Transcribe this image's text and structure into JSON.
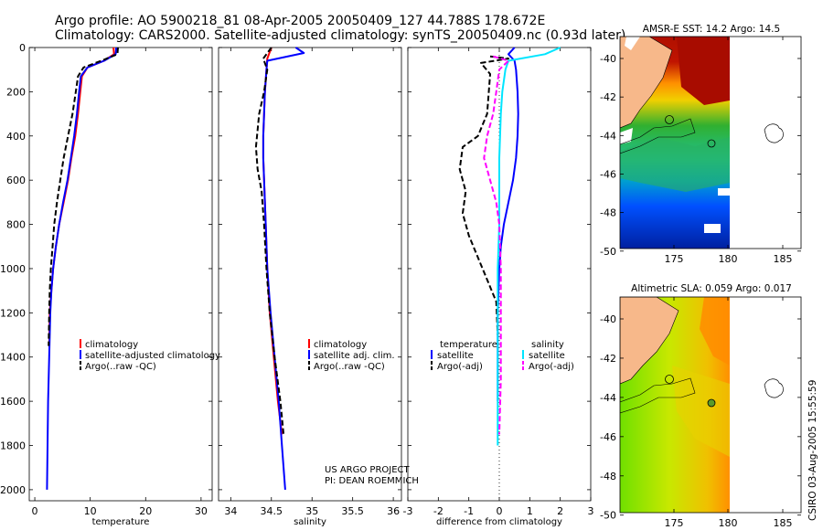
{
  "header": {
    "line1": "Argo profile: AO 5900218_81 08-Apr-2005 20050409_127 44.788S 178.672E",
    "line2": "Climatology: CARS2000. Satellite-adjusted climatology: synTS_20050409.nc (0.93d later)"
  },
  "colors": {
    "climatology": "#ff0000",
    "satellite": "#0000ff",
    "argo": "#000000",
    "salinity_satellite": "#00e5ff",
    "salinity_argo": "#ff00ff"
  },
  "chart_data": [
    {
      "type": "line",
      "xlabel": "temperature",
      "xlim": [
        -1,
        32
      ],
      "ylim": [
        2050,
        0
      ],
      "xticks": [
        0,
        10,
        20,
        30
      ],
      "yticks": [
        0,
        200,
        400,
        600,
        800,
        1000,
        1200,
        1400,
        1600,
        1800,
        2000
      ],
      "legend": [
        "climatology",
        "satellite-adjusted climatology",
        "Argo(..raw -QC)"
      ],
      "series": [
        {
          "name": "climatology",
          "style": "solid",
          "color": "#ff0000",
          "x": [
            14.2,
            14.3,
            12.5,
            9.5,
            8.5,
            8.2,
            7.8,
            7.3,
            6.6,
            6.0,
            5.2,
            4.4,
            3.8,
            3.3,
            3.0,
            2.7,
            2.6
          ],
          "y": [
            0,
            30,
            60,
            90,
            130,
            200,
            300,
            400,
            500,
            600,
            700,
            800,
            900,
            1000,
            1100,
            1200,
            1350
          ]
        },
        {
          "name": "satellite-adjusted climatology",
          "style": "solid",
          "color": "#0000ff",
          "x": [
            14.7,
            14.6,
            12.5,
            9.5,
            8.3,
            8.0,
            7.6,
            7.1,
            6.5,
            5.9,
            5.1,
            4.4,
            3.8,
            3.3,
            3.0,
            2.8,
            2.6,
            2.4,
            2.3,
            2.2
          ],
          "y": [
            0,
            30,
            60,
            90,
            130,
            200,
            300,
            400,
            500,
            600,
            700,
            800,
            900,
            1000,
            1100,
            1200,
            1400,
            1600,
            1800,
            2000
          ]
        },
        {
          "name": "Argo(..raw -QC)",
          "style": "dashed",
          "color": "#000000",
          "x": [
            15.0,
            14.9,
            12.0,
            8.8,
            7.8,
            7.4,
            6.8,
            6.0,
            5.2,
            4.6,
            4.0,
            3.5,
            3.2,
            2.9,
            2.7,
            2.6,
            2.5
          ],
          "y": [
            0,
            30,
            60,
            90,
            130,
            200,
            300,
            400,
            500,
            600,
            700,
            800,
            900,
            1000,
            1100,
            1200,
            1350
          ]
        }
      ]
    },
    {
      "type": "line",
      "xlabel": "salinity",
      "xlim": [
        33.85,
        36.1
      ],
      "ylim": [
        2050,
        0
      ],
      "xticks": [
        34,
        34.5,
        35,
        35.5,
        36
      ],
      "legend": [
        "climatology",
        "satellite adj. clim.",
        "Argo(..raw -QC)"
      ],
      "annotation": [
        "US ARGO PROJECT",
        "PI: DEAN ROEMMICH"
      ],
      "series": [
        {
          "name": "climatology",
          "style": "solid",
          "color": "#ff0000",
          "x": [
            34.5,
            34.45,
            34.44,
            34.42,
            34.41,
            34.4,
            34.4,
            34.41,
            34.43,
            34.45,
            34.48,
            34.53,
            34.58,
            34.63
          ],
          "y": [
            0,
            50,
            100,
            200,
            300,
            400,
            500,
            600,
            800,
            1000,
            1200,
            1400,
            1600,
            1750
          ]
        },
        {
          "name": "satellite adj. clim.",
          "style": "solid",
          "color": "#0000ff",
          "x": [
            34.8,
            34.9,
            34.45,
            34.44,
            34.42,
            34.41,
            34.4,
            34.4,
            34.41,
            34.43,
            34.45,
            34.49,
            34.54,
            34.59,
            34.63,
            34.67
          ],
          "y": [
            0,
            25,
            60,
            100,
            200,
            300,
            400,
            500,
            600,
            800,
            1000,
            1200,
            1400,
            1600,
            1800,
            2000
          ]
        },
        {
          "name": "Argo(..raw -QC)",
          "style": "dashed",
          "color": "#000000",
          "x": [
            34.5,
            34.4,
            34.45,
            34.41,
            34.35,
            34.31,
            34.33,
            34.38,
            34.41,
            34.44,
            34.48,
            34.54,
            34.61,
            34.65
          ],
          "y": [
            0,
            50,
            100,
            200,
            300,
            450,
            550,
            650,
            800,
            1000,
            1200,
            1400,
            1600,
            1750
          ]
        }
      ]
    },
    {
      "type": "line",
      "xlabel": "difference from climatology",
      "xlim": [
        -3,
        3
      ],
      "ylim": [
        2050,
        0
      ],
      "xticks": [
        -3,
        -2,
        -1,
        0,
        1,
        2,
        3
      ],
      "legend": [
        "temperature",
        "satellite",
        "Argo(-adj)",
        "salinity",
        "satellite",
        "Argo(-adj)"
      ],
      "series": [
        {
          "name": "temperature satellite",
          "style": "solid",
          "color": "#0000ff",
          "x": [
            0.5,
            0.3,
            0.5,
            0.55,
            0.6,
            0.62,
            0.6,
            0.55,
            0.45,
            0.3,
            0.15,
            0.05,
            0.0,
            -0.05,
            -0.05,
            -0.05
          ],
          "y": [
            0,
            30,
            60,
            100,
            200,
            300,
            400,
            500,
            600,
            700,
            800,
            900,
            1000,
            1200,
            1400,
            1600
          ]
        },
        {
          "name": "temperature Argo(-adj)",
          "style": "dashed",
          "color": "#000000",
          "x": [
            -0.3,
            0.3,
            -0.6,
            -0.3,
            -0.4,
            -0.7,
            -1.2,
            -1.3,
            -1.1,
            -1.2,
            -1.0,
            -0.7,
            -0.4,
            -0.1,
            -0.05
          ],
          "y": [
            40,
            50,
            70,
            120,
            300,
            400,
            450,
            550,
            650,
            750,
            850,
            950,
            1050,
            1150,
            1300
          ]
        },
        {
          "name": "salinity satellite",
          "style": "solid",
          "color": "#00e5ff",
          "x": [
            2.0,
            1.5,
            0.3,
            0.2,
            0.1,
            0.05,
            0.0,
            0.0,
            -0.05,
            -0.05,
            -0.05,
            -0.05,
            -0.05
          ],
          "y": [
            0,
            30,
            60,
            100,
            200,
            300,
            500,
            800,
            1000,
            1200,
            1400,
            1600,
            1800
          ]
        },
        {
          "name": "salinity Argo(-adj)",
          "style": "dashed",
          "color": "#ff00ff",
          "x": [
            -0.2,
            0.3,
            0.0,
            -0.1,
            -0.2,
            -0.4,
            -0.5,
            -0.3,
            -0.1,
            0.0,
            0.05,
            0.05,
            0.05,
            0.0
          ],
          "y": [
            40,
            60,
            100,
            200,
            300,
            400,
            500,
            600,
            700,
            800,
            1000,
            1200,
            1500,
            1750
          ]
        }
      ]
    }
  ],
  "maps": [
    {
      "title": "AMSR-E SST: 14.2 Argo: 14.5",
      "xticks": [
        "175",
        "180",
        "185"
      ],
      "yticks": [
        "-40",
        "-42",
        "-44",
        "-46",
        "-48",
        "-50"
      ]
    },
    {
      "title": "Altimetric SLA: 0.059 Argo: 0.017",
      "xticks": [
        "175",
        "180",
        "185"
      ],
      "yticks": [
        "-40",
        "-42",
        "-44",
        "-46",
        "-48",
        "-50"
      ]
    }
  ],
  "footer": {
    "stamp": "CSIRO 03-Aug-2005 15:55:59"
  }
}
